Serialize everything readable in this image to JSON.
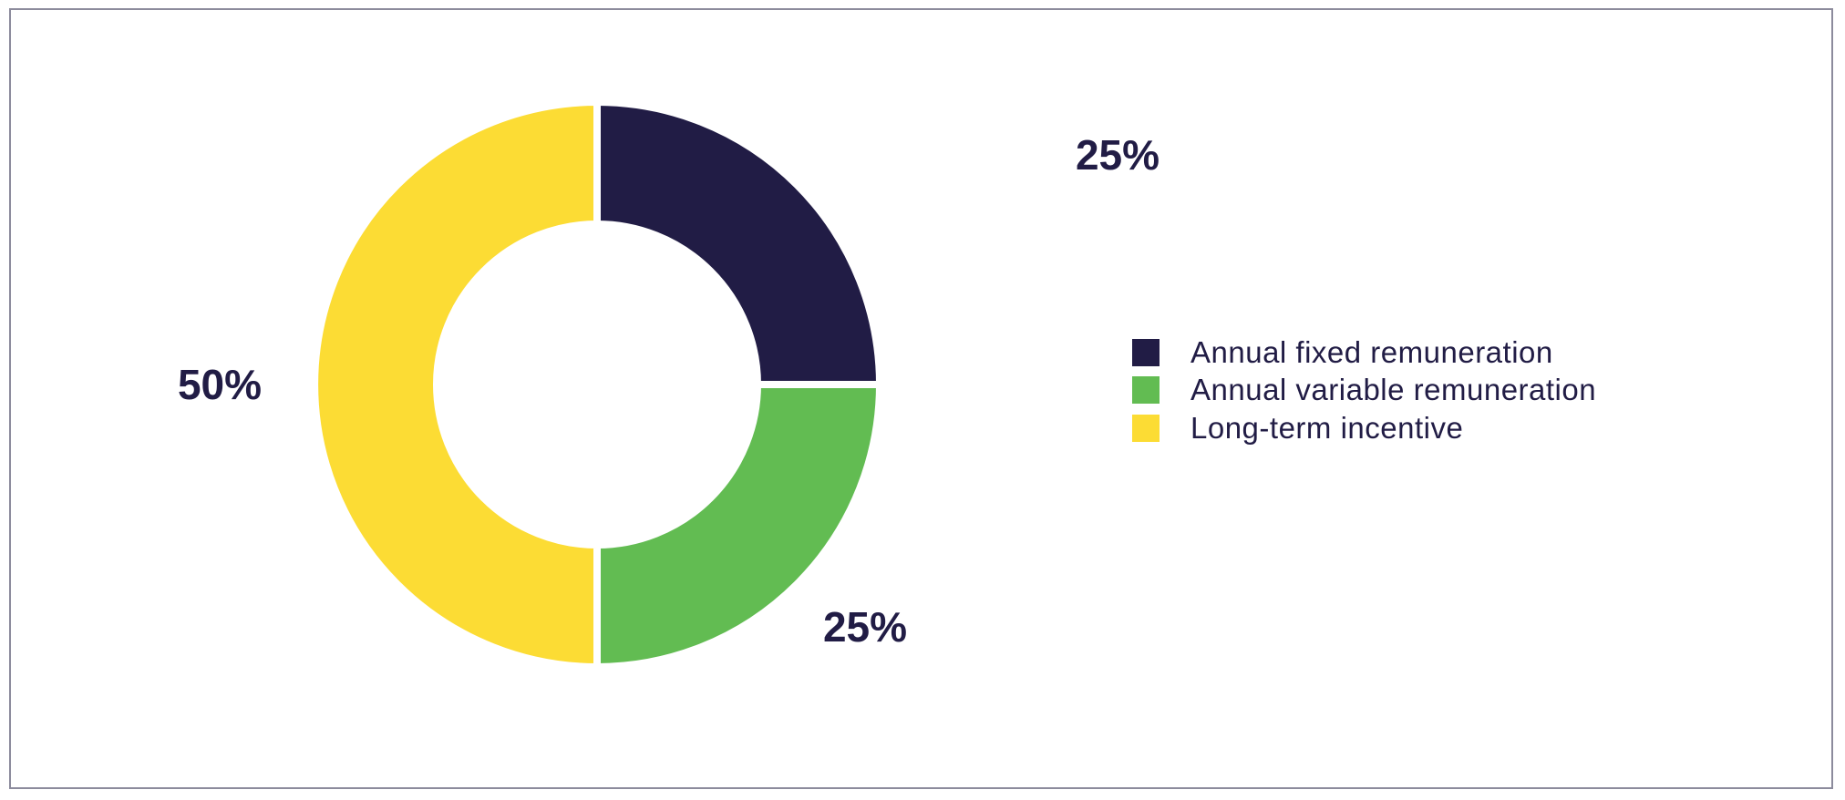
{
  "chart_data": {
    "type": "pie",
    "variant": "donut",
    "title": "",
    "series": [
      {
        "name": "Annual fixed remuneration",
        "value": 25,
        "label": "25%",
        "color": "#211c45"
      },
      {
        "name": "Annual variable remuneration",
        "value": 25,
        "label": "25%",
        "color": "#62bc52"
      },
      {
        "name": "Long-term incentive",
        "value": 50,
        "label": "50%",
        "color": "#fcdc34"
      }
    ],
    "start_angle_deg": 0,
    "direction": "clockwise",
    "legend_position": "right"
  }
}
